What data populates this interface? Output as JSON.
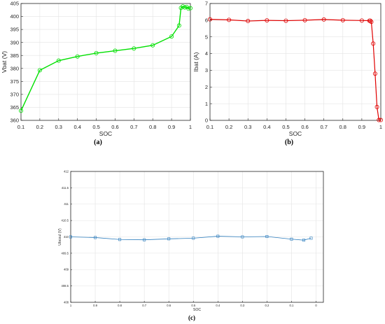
{
  "chart_data": [
    {
      "type": "line",
      "panel_label": "(a)",
      "xlabel": "SOC",
      "ylabel": "Vbat (V)",
      "xlim": [
        0.1,
        1.0
      ],
      "ylim": [
        360,
        405
      ],
      "xticks": [
        "0.1",
        "0.2",
        "0.3",
        "0.4",
        "0.5",
        "0.6",
        "0.7",
        "0.8",
        "0.9",
        "1"
      ],
      "yticks": [
        "360",
        "365",
        "370",
        "375",
        "380",
        "385",
        "390",
        "395",
        "400",
        "405"
      ],
      "grid": true,
      "color": "#00e000",
      "marker": "circle",
      "x": [
        0.1,
        0.2,
        0.3,
        0.4,
        0.5,
        0.6,
        0.7,
        0.8,
        0.9,
        0.94,
        0.95,
        0.96,
        0.97,
        0.98,
        0.99,
        1.0
      ],
      "y": [
        363.7,
        379.3,
        383.0,
        384.6,
        385.9,
        386.8,
        387.7,
        388.9,
        392.3,
        396.5,
        403.3,
        403.9,
        403.5,
        403.7,
        403.0,
        403.2
      ]
    },
    {
      "type": "line",
      "panel_label": "(b)",
      "xlabel": "SOC",
      "ylabel": "Ibat (A)",
      "xlim": [
        0.1,
        1.0
      ],
      "ylim": [
        0,
        7
      ],
      "xticks": [
        "0.1",
        "0.2",
        "0.3",
        "0.4",
        "0.5",
        "0.6",
        "0.7",
        "0.8",
        "0.9",
        "1"
      ],
      "yticks": [
        "0",
        "1",
        "2",
        "3",
        "4",
        "5",
        "6",
        "7"
      ],
      "grid": true,
      "color": "#e00000",
      "marker": "circle",
      "x": [
        0.1,
        0.2,
        0.3,
        0.4,
        0.5,
        0.6,
        0.7,
        0.8,
        0.9,
        0.94,
        0.945,
        0.95,
        0.96,
        0.97,
        0.98,
        0.99,
        1.0
      ],
      "y": [
        6.05,
        6.02,
        5.95,
        5.99,
        5.97,
        6.0,
        6.04,
        6.0,
        5.98,
        5.97,
        5.97,
        5.9,
        4.6,
        2.8,
        0.8,
        0.02,
        0.02
      ]
    },
    {
      "type": "line",
      "panel_label": "(c)",
      "xlabel": "SOC",
      "ylabel": "Ubcoul (V)",
      "xlim": [
        1.0,
        -0.03
      ],
      "ylim": [
        408,
        412
      ],
      "xticks": [
        "1",
        "0.9",
        "0.8",
        "0.7",
        "0.6",
        "0.5",
        "0.4",
        "0.3",
        "0.2",
        "0.1",
        "0"
      ],
      "xtick_values": [
        1.0,
        0.9,
        0.8,
        0.7,
        0.6,
        0.5,
        0.4,
        0.3,
        0.2,
        0.1,
        0.0
      ],
      "yticks": [
        "408",
        "408.5",
        "409",
        "409.5",
        "410",
        "410.5",
        "411",
        "411.5",
        "412"
      ],
      "grid": true,
      "color": "#2f7fbf",
      "marker": "square",
      "x": [
        1.0,
        0.9,
        0.8,
        0.7,
        0.6,
        0.5,
        0.4,
        0.3,
        0.2,
        0.1,
        0.05,
        0.02
      ],
      "y": [
        410.0,
        409.98,
        409.92,
        409.91,
        409.94,
        409.96,
        410.02,
        410.0,
        410.01,
        409.93,
        409.9,
        409.96
      ]
    }
  ]
}
